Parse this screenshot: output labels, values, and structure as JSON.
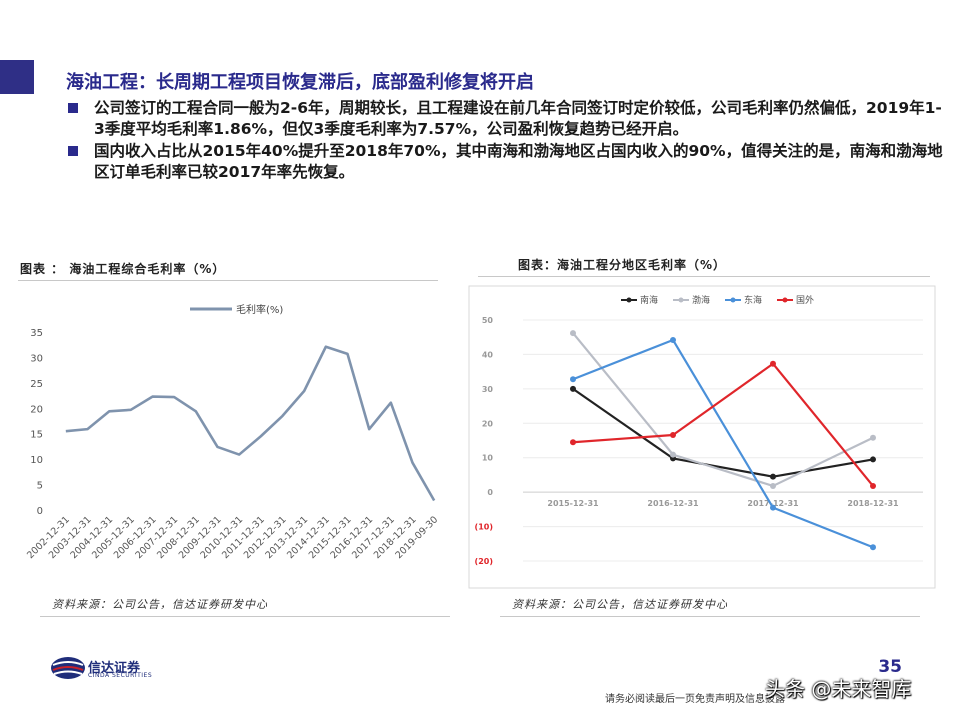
{
  "slide": {
    "title": "海油工程：长周期工程项目恢复滞后，底部盈利修复将开启",
    "bullets": [
      "公司签订的工程合同一般为2-6年，周期较长，且工程建设在前几年合同签订时定价较低，公司毛利率仍然偏低，2019年1-3季度平均毛利率1.86%，但仅3季度毛利率为7.57%，公司盈利恢复趋势已经开启。",
      "国内收入占比从2015年40%提升至2018年70%，其中南海和渤海地区占国内收入的90%，值得关注的是，南海和渤海地区订单毛利率已较2017年率先恢复。"
    ],
    "page_number": "35",
    "disclaimer": "请务必阅读最后一页免责声明及信息披露",
    "watermark": "头条 @未来智库",
    "logo": {
      "name": "信达证券",
      "sub": "CINDA SECURITIES"
    }
  },
  "figures": [
    {
      "title": "图表 ：  海油工程综合毛利率（%）",
      "source": "资料来源：公司公告，信达证券研发中心"
    },
    {
      "title": "图表：海油工程分地区毛利率（%）",
      "source": "资料来源：公司公告，信达证券研发中心"
    }
  ],
  "colors": {
    "accent": "#2a2a8c",
    "left_line": "#7f93ad"
  },
  "chart_data": [
    {
      "type": "line",
      "title": "",
      "xlabel": "",
      "ylabel": "",
      "legend_position": "top-center",
      "grid": false,
      "ylim": [
        0,
        35
      ],
      "yticks": [
        0,
        5,
        10,
        15,
        20,
        25,
        30,
        35
      ],
      "categories": [
        "2002-12-31",
        "2003-12-31",
        "2004-12-31",
        "2005-12-31",
        "2006-12-31",
        "2007-12-31",
        "2008-12-31",
        "2009-12-31",
        "2010-12-31",
        "2011-12-31",
        "2012-12-31",
        "2013-12-31",
        "2014-12-31",
        "2015-12-31",
        "2016-12-31",
        "2017-12-31",
        "2018-12-31",
        "2019-09-30"
      ],
      "series": [
        {
          "name": "毛利率(%)",
          "color": "#7f93ad",
          "values": [
            15.5,
            15.9,
            19.4,
            19.7,
            22.3,
            22.2,
            19.4,
            12.4,
            10.9,
            14.5,
            18.5,
            23.4,
            32.1,
            30.7,
            15.9,
            21.1,
            9.3,
            1.86
          ]
        }
      ]
    },
    {
      "type": "line",
      "title": "",
      "xlabel": "",
      "ylabel": "",
      "legend_position": "top-center",
      "grid": true,
      "ylim": [
        -20,
        50
      ],
      "yticks": [
        -20,
        -10,
        0,
        10,
        20,
        30,
        40,
        50
      ],
      "ytick_labels": [
        "(20)",
        "(10)",
        "0",
        "10",
        "20",
        "30",
        "40",
        "50"
      ],
      "categories": [
        "2015-12-31",
        "2016-12-31",
        "2017-12-31",
        "2018-12-31"
      ],
      "series": [
        {
          "name": "南海",
          "color": "#222222",
          "values": [
            30.0,
            9.8,
            4.5,
            9.5
          ]
        },
        {
          "name": "渤海",
          "color": "#b9bdc6",
          "values": [
            46.2,
            10.9,
            1.8,
            15.8
          ]
        },
        {
          "name": "东海",
          "color": "#4a90d9",
          "values": [
            32.8,
            44.2,
            -4.5,
            -16.0
          ]
        },
        {
          "name": "国外",
          "color": "#e0262b",
          "values": [
            14.5,
            16.6,
            37.3,
            1.8
          ]
        }
      ]
    }
  ]
}
